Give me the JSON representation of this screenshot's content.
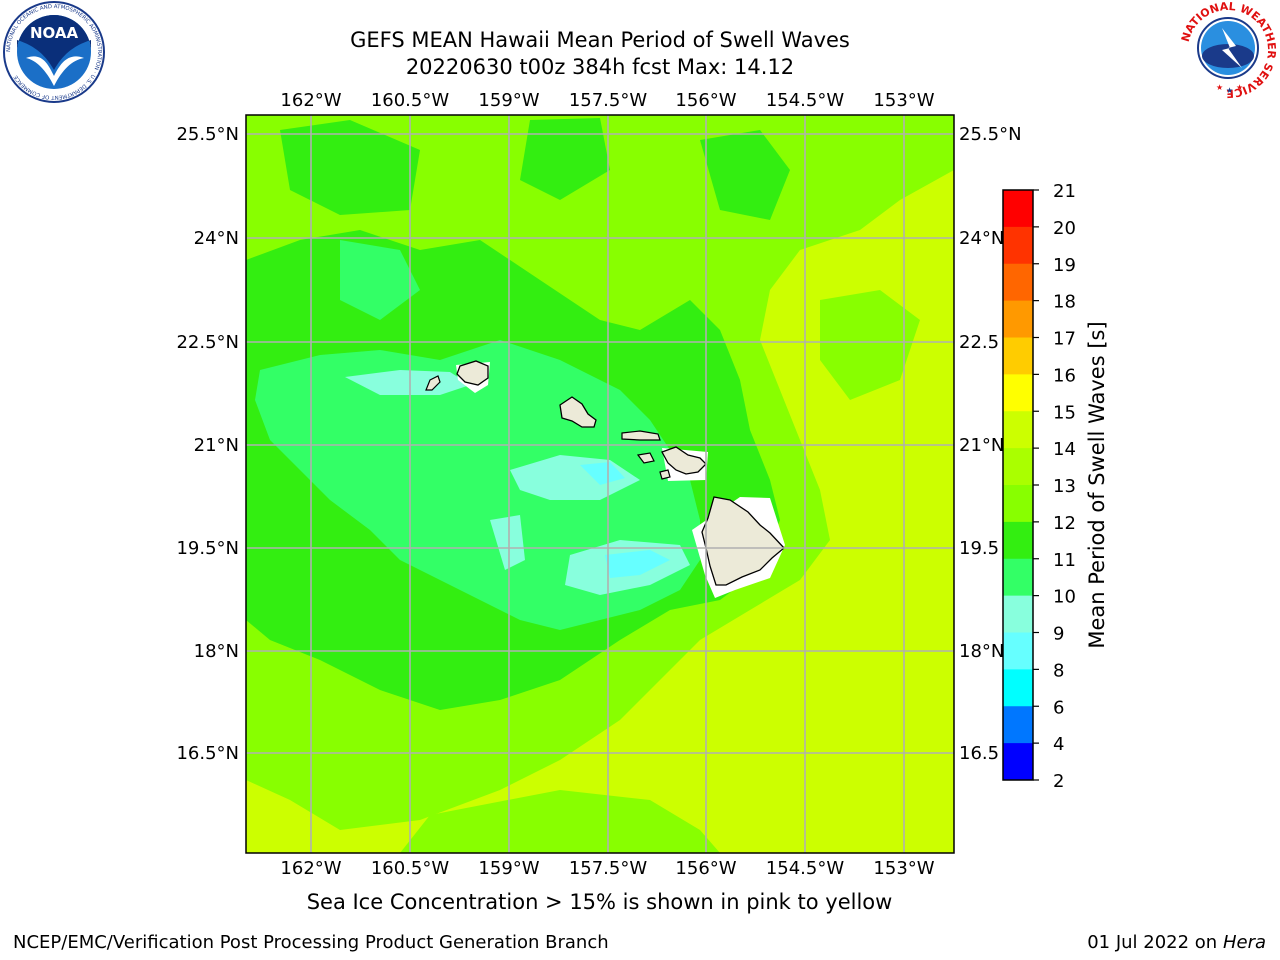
{
  "title": {
    "line1": "GEFS MEAN Hawaii Mean Period of Swell Waves",
    "line2": "20220630 t00z 384h fcst   Max: 14.12"
  },
  "map": {
    "lon_ticks": [
      "162°W",
      "160.5°W",
      "159°W",
      "157.5°W",
      "156°W",
      "154.5°W",
      "153°W"
    ],
    "lat_ticks_left": [
      "25.5°N",
      "24°N",
      "22.5°N",
      "21°N",
      "19.5°N",
      "18°N",
      "16.5°N"
    ],
    "lat_ticks_right": [
      "25.5°N",
      "24°N",
      "22.5",
      "21°N",
      "19.5",
      "18°N",
      "16.5"
    ],
    "land_color": "#ecead8",
    "grid_color": "#b0b0b0",
    "field_colors": {
      "c13_14": "#ccff00",
      "c12_13": "#88ff00",
      "c11_12": "#33ee11",
      "c10_11": "#33ff66",
      "c9_10": "#88ffdd",
      "c8_9": "#66ffff"
    }
  },
  "colorbar": {
    "label": "Mean Period of Swell Waves [s]",
    "ticks": [
      "21",
      "20",
      "19",
      "18",
      "17",
      "16",
      "15",
      "14",
      "13",
      "12",
      "11",
      "10",
      "9",
      "8",
      "6",
      "4",
      "2"
    ],
    "colors": [
      "#ff0000",
      "#ff3300",
      "#ff6600",
      "#ff9900",
      "#ffcc00",
      "#ffff00",
      "#ccff00",
      "#aaff00",
      "#88ff00",
      "#33ee11",
      "#33ff66",
      "#88ffdd",
      "#66ffff",
      "#00ffff",
      "#0077ff",
      "#0000ff"
    ]
  },
  "caption": "Sea Ice Concentration > 15% is shown in pink to yellow",
  "footer": {
    "left": "NCEP/EMC/Verification Post Processing Product Generation Branch",
    "right_date": "01 Jul 2022 on",
    "right_host": "Hera"
  },
  "logos": {
    "noaa_text": "NOAA",
    "noaa_ring": "NATIONAL OCEANIC AND ATMOSPHERIC ADMINISTRATION · U.S. DEPARTMENT OF COMMERCE",
    "nws_ring": "NATIONAL WEATHER SERVICE"
  }
}
